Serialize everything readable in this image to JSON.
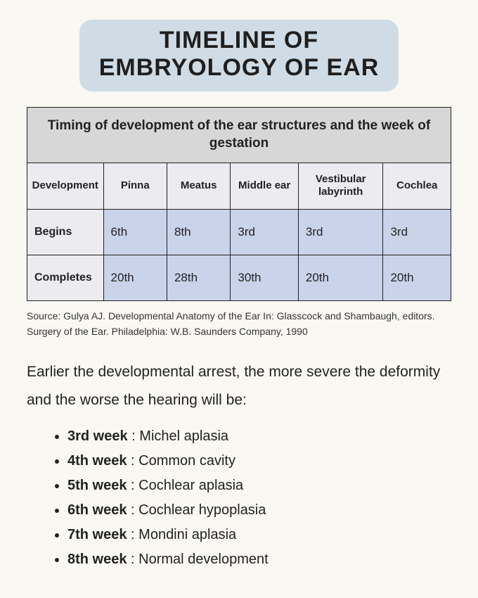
{
  "title_line1": "TIMELINE OF",
  "title_line2": "EMBRYOLOGY OF EAR",
  "table": {
    "caption": "Timing of development of the ear structures and the week of gestation",
    "columns": [
      "Development",
      "Pinna",
      "Meatus",
      "Middle ear",
      "Vestibular labyrinth",
      "Cochlea"
    ],
    "rows": [
      {
        "label": "Begins",
        "cells": [
          "6th",
          "8th",
          "3rd",
          "3rd",
          "3rd"
        ]
      },
      {
        "label": "Completes",
        "cells": [
          "20th",
          "28th",
          "30th",
          "20th",
          "20th"
        ]
      }
    ],
    "col_widths_pct": [
      18,
      15,
      15,
      16,
      20,
      16
    ],
    "header_bg": "#d7d7d7",
    "label_bg": "#ebebf0",
    "data_bg": "#c9d3ea",
    "border_color": "#1f1f1f"
  },
  "source": "Source: Gulya AJ. Developmental Anatomy of the Ear In: Glasscock and Shambaugh, editors. Surgery of the Ear. Philadelphia: W.B. Saunders Company, 1990",
  "lead": "Earlier the developmental arrest, the more severe the deformity and the worse the hearing will be:",
  "arrests": [
    {
      "week": "3rd week",
      "label": "Michel aplasia"
    },
    {
      "week": "4th week",
      "label": "Common cavity"
    },
    {
      "week": "5th week",
      "label": "Cochlear aplasia"
    },
    {
      "week": "6th week",
      "label": "Cochlear hypoplasia"
    },
    {
      "week": "7th week",
      "label": "Mondini aplasia"
    },
    {
      "week": "8th week",
      "label": "Normal development"
    }
  ],
  "colors": {
    "page_bg": "#faf8f3",
    "title_bg": "#cfdce5",
    "text": "#222222"
  }
}
